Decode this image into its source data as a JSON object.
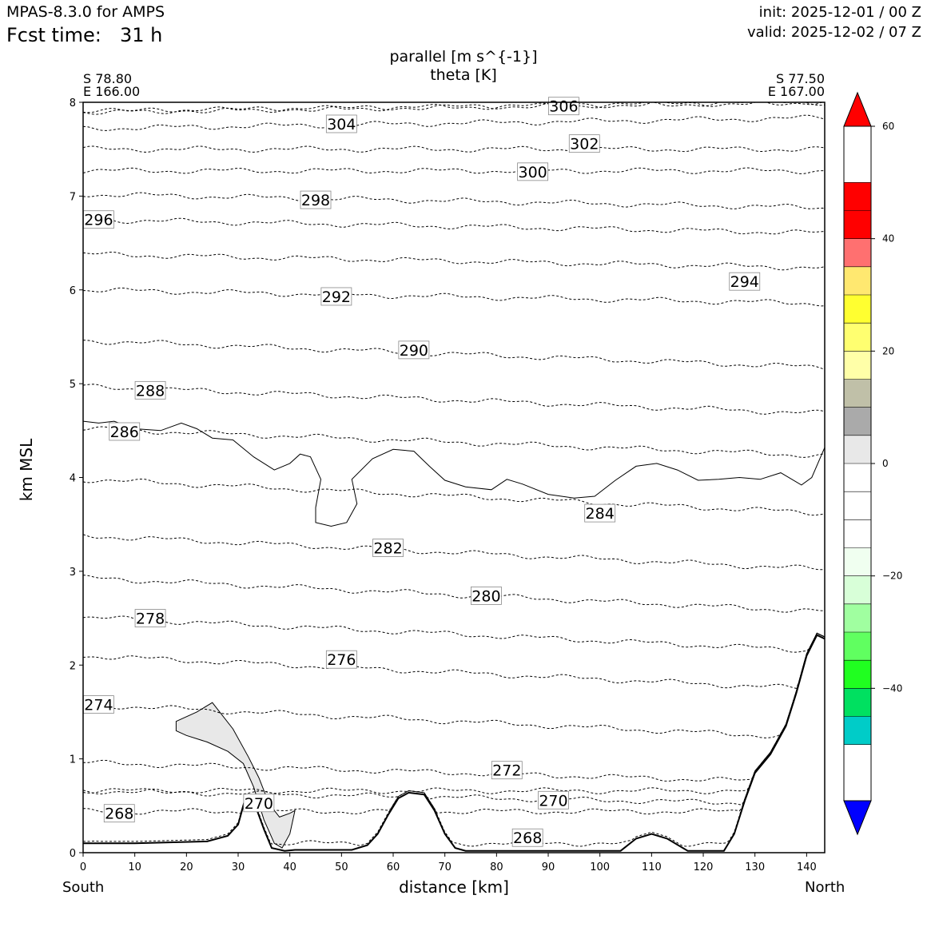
{
  "header": {
    "model": "MPAS-8.3.0 for AMPS",
    "fcst_label": "Fcst time:",
    "fcst_value": "31 h",
    "init": "init: 2025-12-01 / 00 Z",
    "valid": "valid: 2025-12-02 / 07 Z"
  },
  "plot": {
    "title_line1": "parallel [m s^{-1}]",
    "title_line2": "theta [K]",
    "left_point_lat": "S 78.80",
    "left_point_lon": "E 166.00",
    "right_point_lat": "S 77.50",
    "right_point_lon": "E 167.00",
    "left_end_label": "South",
    "right_end_label": "North"
  },
  "chart_data": {
    "type": "contour-cross-section",
    "xlabel": "distance [km]",
    "ylabel": "km MSL",
    "xlim": [
      0,
      143.5
    ],
    "ylim": [
      0,
      8
    ],
    "x_ticks": [
      0,
      10,
      20,
      30,
      40,
      50,
      60,
      70,
      80,
      90,
      100,
      110,
      120,
      130,
      140
    ],
    "y_ticks": [
      0,
      1,
      2,
      3,
      4,
      5,
      6,
      7,
      8
    ],
    "theta_contours": [
      {
        "label": "268",
        "base": 0.1,
        "slope": 0.0,
        "label_x": 7,
        "label_y": 0.42
      },
      {
        "label": "268",
        "base": 0.44,
        "slope": 0.0,
        "label_x": 86,
        "label_y": 0.16
      },
      {
        "label": "270",
        "base": 0.66,
        "slope": -0.001,
        "label_x": 91,
        "label_y": 0.56
      },
      {
        "label": "270",
        "base": 0.66,
        "slope": 0.0,
        "label_x": 34,
        "label_y": 0.53
      },
      {
        "label": "272",
        "base": 0.96,
        "slope": -0.0015,
        "label_x": 82,
        "label_y": 0.88
      },
      {
        "label": "274",
        "base": 1.58,
        "slope": -0.0025,
        "label_x": 3,
        "label_y": 1.58
      },
      {
        "label": "276",
        "base": 2.1,
        "slope": -0.0025,
        "label_x": 50,
        "label_y": 2.06
      },
      {
        "label": "278",
        "base": 2.51,
        "slope": -0.0025,
        "label_x": 13,
        "label_y": 2.5
      },
      {
        "label": "280",
        "base": 2.93,
        "slope": -0.0025,
        "label_x": 78,
        "label_y": 2.74
      },
      {
        "label": "282",
        "base": 3.38,
        "slope": -0.0025,
        "label_x": 59,
        "label_y": 3.25
      },
      {
        "label": "284",
        "base": 3.98,
        "slope": -0.0025,
        "label_x": 100,
        "label_y": 3.62
      },
      {
        "label": "286",
        "base": 4.52,
        "slope": -0.002,
        "label_x": 8,
        "label_y": 4.49
      },
      {
        "label": "288",
        "base": 4.97,
        "slope": -0.002,
        "label_x": 13,
        "label_y": 4.93
      },
      {
        "label": "290",
        "base": 5.46,
        "slope": -0.002,
        "label_x": 64,
        "label_y": 5.36
      },
      {
        "label": "292",
        "base": 6.0,
        "slope": -0.001,
        "label_x": 49,
        "label_y": 5.93
      },
      {
        "label": "294",
        "base": 6.38,
        "slope": -0.001,
        "label_x": 128,
        "label_y": 6.09
      },
      {
        "label": "296",
        "base": 6.75,
        "slope": -0.001,
        "label_x": 3,
        "label_y": 6.75
      },
      {
        "label": "298",
        "base": 7.02,
        "slope": -0.001,
        "label_x": 45,
        "label_y": 6.96
      },
      {
        "label": "300",
        "base": 7.27,
        "slope": 0.0,
        "label_x": 87,
        "label_y": 7.26
      },
      {
        "label": "302",
        "base": 7.5,
        "slope": 0.0,
        "label_x": 97,
        "label_y": 7.56
      },
      {
        "label": "304",
        "base": 7.72,
        "slope": 0.0008,
        "label_x": 50,
        "label_y": 7.77
      },
      {
        "label": "306",
        "base": 7.9,
        "slope": 0.0007,
        "label_x": 93,
        "label_y": 7.96
      },
      {
        "label": "306",
        "base": 7.9,
        "slope": 0.0007,
        "label_x": 116,
        "label_y": 7.97
      }
    ],
    "terrain": [
      [
        0,
        0.1
      ],
      [
        10,
        0.1
      ],
      [
        24,
        0.12
      ],
      [
        28,
        0.18
      ],
      [
        30,
        0.3
      ],
      [
        31.5,
        0.6
      ],
      [
        33,
        0.55
      ],
      [
        35,
        0.25
      ],
      [
        36.5,
        0.05
      ],
      [
        39,
        0.02
      ],
      [
        41,
        0.03
      ],
      [
        52,
        0.03
      ],
      [
        55,
        0.08
      ],
      [
        57,
        0.2
      ],
      [
        59,
        0.4
      ],
      [
        61,
        0.58
      ],
      [
        63,
        0.64
      ],
      [
        66,
        0.62
      ],
      [
        68,
        0.45
      ],
      [
        70,
        0.2
      ],
      [
        72,
        0.05
      ],
      [
        74,
        0.02
      ],
      [
        104,
        0.02
      ],
      [
        107,
        0.15
      ],
      [
        110,
        0.2
      ],
      [
        113,
        0.15
      ],
      [
        117,
        0.02
      ],
      [
        124,
        0.02
      ],
      [
        126,
        0.2
      ],
      [
        128,
        0.55
      ],
      [
        130,
        0.85
      ],
      [
        133,
        1.05
      ],
      [
        136,
        1.35
      ],
      [
        138,
        1.7
      ],
      [
        140,
        2.1
      ],
      [
        142,
        2.32
      ],
      [
        143.5,
        2.28
      ]
    ],
    "zero_wind_contour": [
      [
        0,
        4.6
      ],
      [
        3,
        4.58
      ],
      [
        6,
        4.6
      ],
      [
        10,
        4.52
      ],
      [
        15,
        4.5
      ],
      [
        19,
        4.58
      ],
      [
        22,
        4.52
      ],
      [
        25,
        4.42
      ],
      [
        29,
        4.4
      ],
      [
        33,
        4.22
      ],
      [
        37,
        4.08
      ],
      [
        40,
        4.15
      ],
      [
        42,
        4.25
      ],
      [
        44,
        4.22
      ],
      [
        46,
        3.98
      ],
      [
        45,
        3.68
      ],
      [
        45,
        3.52
      ],
      [
        48,
        3.48
      ],
      [
        51,
        3.52
      ],
      [
        53,
        3.72
      ],
      [
        52,
        3.98
      ],
      [
        56,
        4.2
      ],
      [
        60,
        4.3
      ],
      [
        64,
        4.28
      ],
      [
        67,
        4.12
      ],
      [
        70,
        3.97
      ],
      [
        74,
        3.9
      ],
      [
        79,
        3.87
      ],
      [
        82,
        3.98
      ],
      [
        85,
        3.93
      ],
      [
        90,
        3.82
      ],
      [
        95,
        3.78
      ],
      [
        99,
        3.8
      ],
      [
        103,
        3.97
      ],
      [
        107,
        4.12
      ],
      [
        111,
        4.15
      ],
      [
        115,
        4.08
      ],
      [
        119,
        3.97
      ],
      [
        123,
        3.98
      ],
      [
        127,
        4.0
      ],
      [
        131,
        3.98
      ],
      [
        135,
        4.05
      ],
      [
        139,
        3.92
      ],
      [
        141,
        4.0
      ],
      [
        143.5,
        4.32
      ]
    ],
    "negative_region": [
      [
        18,
        1.4
      ],
      [
        22,
        1.5
      ],
      [
        25,
        1.6
      ],
      [
        29,
        1.32
      ],
      [
        32,
        1.02
      ],
      [
        34,
        0.8
      ],
      [
        36,
        0.52
      ],
      [
        38,
        0.38
      ],
      [
        40,
        0.42
      ],
      [
        41,
        0.45
      ],
      [
        40,
        0.2
      ],
      [
        38.5,
        0.05
      ],
      [
        37,
        0.1
      ],
      [
        35,
        0.35
      ],
      [
        33,
        0.7
      ],
      [
        31,
        0.95
      ],
      [
        28,
        1.08
      ],
      [
        24,
        1.18
      ],
      [
        20,
        1.25
      ],
      [
        18,
        1.3
      ]
    ],
    "colorbar": {
      "levels": [
        -60,
        -50,
        -45,
        -40,
        -35,
        -30,
        -25,
        -20,
        -15,
        -10,
        -5,
        0,
        5,
        10,
        15,
        20,
        25,
        30,
        35,
        40,
        45,
        50,
        60
      ],
      "colors": [
        "#0000ff",
        "#00ccc8",
        "#00e060",
        "#20ff20",
        "#60ff60",
        "#a0ffa0",
        "#d8ffd8",
        "#f0fff0",
        "#ffffff",
        "#ffffff",
        "#ffffff",
        "#e8e8e8",
        "#aaaaaa",
        "#c0c0a8",
        "#ffffa8",
        "#ffff70",
        "#ffff30",
        "#ffe870",
        "#ff7070",
        "#ff0000"
      ],
      "ticks": [
        -40,
        -20,
        0,
        20,
        40,
        60
      ],
      "extend": "both"
    }
  }
}
